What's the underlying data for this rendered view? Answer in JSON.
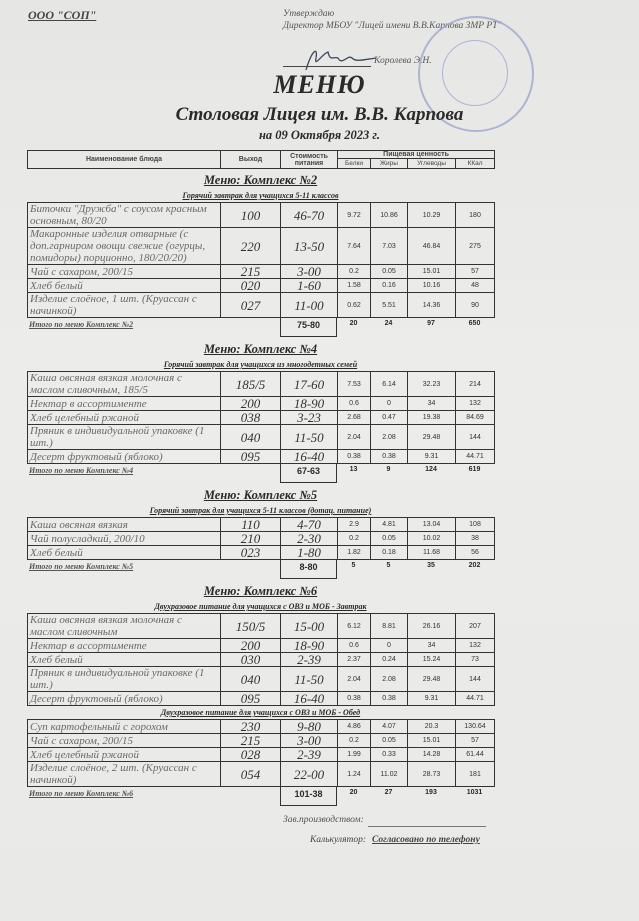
{
  "org": "ООО \"СОП\"",
  "approval": {
    "line1": "Утверждаю",
    "line2": "Директор МБОУ \"Лицей имени В.В.Карпова ЗМР РТ\"",
    "name": "Королева Э.Н."
  },
  "title": "МЕНЮ",
  "subtitle": "Столовая Лицея им. В.В. Карпова",
  "date": "на 09 Октября 2023 г.",
  "columns": {
    "name": "Наименование блюда",
    "output": "Выход",
    "cost": "Стоимость питания",
    "nutrition": "Пищевая ценность",
    "proteins": "Белки",
    "fats": "Жиры",
    "carbs": "Углеводы",
    "kcal": "ККал"
  },
  "sections": [
    {
      "heading": "Меню: Комплекс №2",
      "groups": [
        {
          "subtitle": "Горячий завтрак для учащихся 5-11 классов",
          "rows": [
            {
              "name": "Биточки \"Дружба\" с соусом красным основным, 80/20",
              "output": "100",
              "cost": "46-70",
              "b": "9.72",
              "j": "10.86",
              "u": "10.29",
              "k": "180"
            },
            {
              "name": "Макаронные изделия отварные (с доп.гарниром овощи свежие (огурцы, помидоры) порционно, 180/20/20)",
              "output": "220",
              "cost": "13-50",
              "b": "7.64",
              "j": "7.03",
              "u": "46.84",
              "k": "275"
            },
            {
              "name": "Чай с сахаром, 200/15",
              "output": "215",
              "cost": "3-00",
              "b": "0.2",
              "j": "0.05",
              "u": "15.01",
              "k": "57"
            },
            {
              "name": "Хлеб белый",
              "output": "020",
              "cost": "1-60",
              "b": "1.58",
              "j": "0.16",
              "u": "10.16",
              "k": "48"
            },
            {
              "name": "Изделие слоёное, 1 шт. (Круассан с начинкой)",
              "output": "027",
              "cost": "11-00",
              "b": "0.62",
              "j": "5.51",
              "u": "14.36",
              "k": "90"
            }
          ]
        }
      ],
      "total": {
        "label": "Итого по меню Комплекс №2",
        "cost": "75-80",
        "b": "20",
        "j": "24",
        "u": "97",
        "k": "650"
      }
    },
    {
      "heading": "Меню: Комплекс №4",
      "groups": [
        {
          "subtitle": "Горячий завтрак для учащихся из многодетных семей",
          "rows": [
            {
              "name": "Каша овсяная вязкая молочная с маслом сливочным, 185/5",
              "output": "185/5",
              "cost": "17-60",
              "b": "7.53",
              "j": "6.14",
              "u": "32.23",
              "k": "214"
            },
            {
              "name": "Нектар в ассортименте",
              "output": "200",
              "cost": "18-90",
              "b": "0.6",
              "j": "0",
              "u": "34",
              "k": "132"
            },
            {
              "name": "Хлеб целебный ржаной",
              "output": "038",
              "cost": "3-23",
              "b": "2.68",
              "j": "0.47",
              "u": "19.38",
              "k": "84.69"
            },
            {
              "name": "Пряник в индивидуальной упаковке (1 шт.)",
              "output": "040",
              "cost": "11-50",
              "b": "2.04",
              "j": "2.08",
              "u": "29.48",
              "k": "144"
            },
            {
              "name": "Десерт фруктовый (яблоко)",
              "output": "095",
              "cost": "16-40",
              "b": "0.38",
              "j": "0.38",
              "u": "9.31",
              "k": "44.71"
            }
          ]
        }
      ],
      "total": {
        "label": "Итого по меню Комплекс №4",
        "cost": "67-63",
        "b": "13",
        "j": "9",
        "u": "124",
        "k": "619"
      }
    },
    {
      "heading": "Меню: Комплекс №5",
      "groups": [
        {
          "subtitle": "Горячий завтрак для учащихся 5-11 классов (дотац. питание)",
          "rows": [
            {
              "name": "Каша овсяная вязкая",
              "output": "110",
              "cost": "4-70",
              "b": "2.9",
              "j": "4.81",
              "u": "13.04",
              "k": "108"
            },
            {
              "name": "Чай полусладкий, 200/10",
              "output": "210",
              "cost": "2-30",
              "b": "0.2",
              "j": "0.05",
              "u": "10.02",
              "k": "38"
            },
            {
              "name": "Хлеб белый",
              "output": "023",
              "cost": "1-80",
              "b": "1.82",
              "j": "0.18",
              "u": "11.68",
              "k": "56"
            }
          ]
        }
      ],
      "total": {
        "label": "Итого по меню Комплекс №5",
        "cost": "8-80",
        "b": "5",
        "j": "5",
        "u": "35",
        "k": "202"
      }
    },
    {
      "heading": "Меню: Комплекс №6",
      "groups": [
        {
          "subtitle": "Двухразовое питание для учащихся с ОВЗ и МОБ - Завтрак",
          "rows": [
            {
              "name": "Каша овсяная вязкая молочная с маслом сливочным",
              "output": "150/5",
              "cost": "15-00",
              "b": "6.12",
              "j": "8.81",
              "u": "26.16",
              "k": "207"
            },
            {
              "name": "Нектар в ассортименте",
              "output": "200",
              "cost": "18-90",
              "b": "0.6",
              "j": "0",
              "u": "34",
              "k": "132"
            },
            {
              "name": "Хлеб белый",
              "output": "030",
              "cost": "2-39",
              "b": "2.37",
              "j": "0.24",
              "u": "15.24",
              "k": "73"
            },
            {
              "name": "Пряник в индивидуальной упаковке (1 шт.)",
              "output": "040",
              "cost": "11-50",
              "b": "2.04",
              "j": "2.08",
              "u": "29.48",
              "k": "144"
            },
            {
              "name": "Десерт фруктовый (яблоко)",
              "output": "095",
              "cost": "16-40",
              "b": "0.38",
              "j": "0.38",
              "u": "9.31",
              "k": "44.71"
            }
          ]
        },
        {
          "subtitle": "Двухразовое питание для учащихся с ОВЗ и МОБ - Обед",
          "rows": [
            {
              "name": "Суп картофельный с горохом",
              "output": "230",
              "cost": "9-80",
              "b": "4.86",
              "j": "4.07",
              "u": "20.3",
              "k": "130.64"
            },
            {
              "name": "Чай с сахаром, 200/15",
              "output": "215",
              "cost": "3-00",
              "b": "0.2",
              "j": "0.05",
              "u": "15.01",
              "k": "57"
            },
            {
              "name": "Хлеб целебный ржаной",
              "output": "028",
              "cost": "2-39",
              "b": "1.99",
              "j": "0.33",
              "u": "14.28",
              "k": "61.44"
            },
            {
              "name": "Изделие слоёное, 2 шт. (Круассан с начинкой)",
              "output": "054",
              "cost": "22-00",
              "b": "1.24",
              "j": "11.02",
              "u": "28.73",
              "k": "181"
            }
          ]
        }
      ],
      "total": {
        "label": "Итого по меню Комплекс №6",
        "cost": "101-38",
        "b": "20",
        "j": "27",
        "u": "193",
        "k": "1031"
      }
    }
  ],
  "footer": {
    "manager_label": "Зав.производством:",
    "calculator_label": "Калькулятор:",
    "calculator_value": "Согласовано по телефону"
  },
  "colors": {
    "stamp": "#9aa3cf",
    "signature": "#3f4660"
  }
}
